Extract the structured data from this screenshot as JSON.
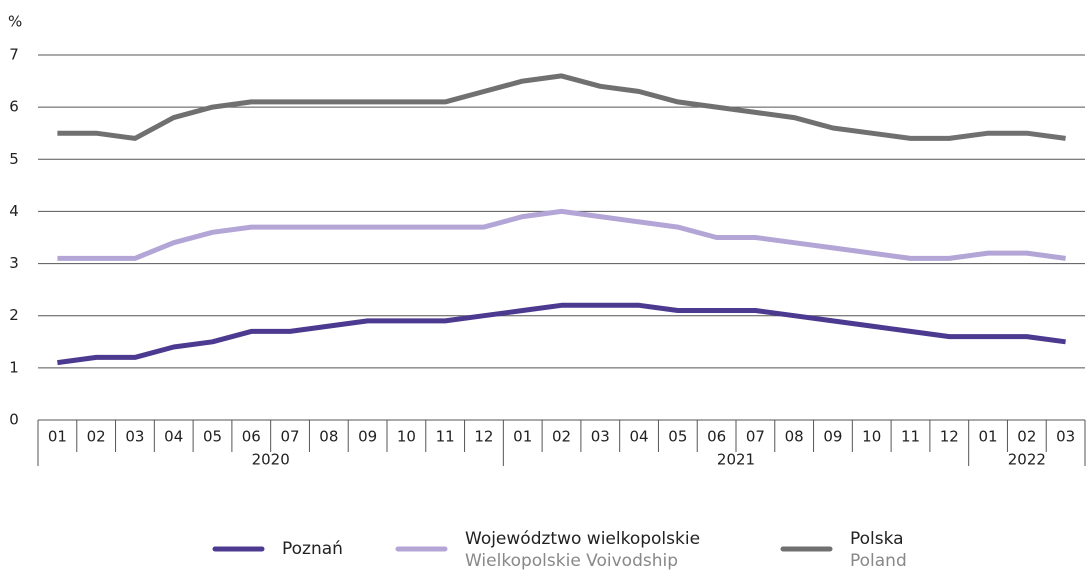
{
  "chart_data": {
    "type": "line",
    "y_label": "%",
    "categories": [
      "01",
      "02",
      "03",
      "04",
      "05",
      "06",
      "07",
      "08",
      "09",
      "10",
      "11",
      "12",
      "01",
      "02",
      "03",
      "04",
      "05",
      "06",
      "07",
      "08",
      "09",
      "10",
      "11",
      "12",
      "01",
      "02",
      "03"
    ],
    "groups": [
      {
        "label": "2020",
        "size": 12
      },
      {
        "label": "2021",
        "size": 12
      },
      {
        "label": "2022",
        "size": 3
      }
    ],
    "series": [
      {
        "name": "Poznań",
        "color": "#4b3a8f",
        "values": [
          1.1,
          1.2,
          1.2,
          1.4,
          1.5,
          1.7,
          1.7,
          1.8,
          1.9,
          1.9,
          1.9,
          2.0,
          2.1,
          2.2,
          2.2,
          2.2,
          2.1,
          2.1,
          2.1,
          2.0,
          1.9,
          1.8,
          1.7,
          1.6,
          1.6,
          1.6,
          1.5
        ]
      },
      {
        "name": "Województwo wielkopolskie",
        "name_en": "Wielkopolskie Voivodship",
        "color": "#b3a6d6",
        "values": [
          3.1,
          3.1,
          3.1,
          3.4,
          3.6,
          3.7,
          3.7,
          3.7,
          3.7,
          3.7,
          3.7,
          3.7,
          3.9,
          4.0,
          3.9,
          3.8,
          3.7,
          3.5,
          3.5,
          3.4,
          3.3,
          3.2,
          3.1,
          3.1,
          3.2,
          3.2,
          3.1
        ]
      },
      {
        "name": "Polska",
        "name_en": "Poland",
        "color": "#707070",
        "values": [
          5.5,
          5.5,
          5.4,
          5.8,
          6.0,
          6.1,
          6.1,
          6.1,
          6.1,
          6.1,
          6.1,
          6.3,
          6.5,
          6.6,
          6.4,
          6.3,
          6.1,
          6.0,
          5.9,
          5.8,
          5.6,
          5.5,
          5.4,
          5.4,
          5.5,
          5.5,
          5.4
        ]
      }
    ],
    "ylim": [
      0,
      7
    ],
    "yticks": [
      0,
      1,
      2,
      3,
      4,
      5,
      6,
      7
    ],
    "grid": true
  }
}
